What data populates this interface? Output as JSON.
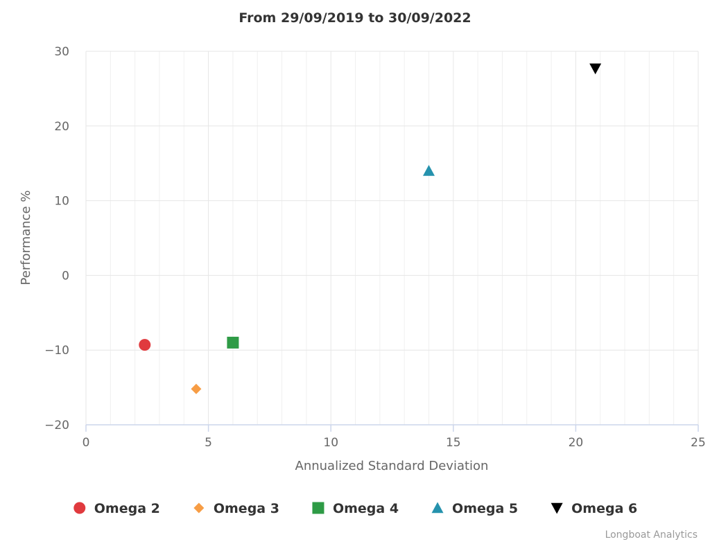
{
  "chart_data": {
    "type": "scatter",
    "title": "From 29/09/2019 to 30/09/2022",
    "xlabel": "Annualized Standard Deviation",
    "ylabel": "Performance %",
    "xlim": [
      0,
      25
    ],
    "ylim": [
      -20,
      30
    ],
    "xticks": [
      0,
      5,
      10,
      15,
      20,
      25
    ],
    "yticks": [
      -20,
      -10,
      0,
      10,
      20,
      30
    ],
    "xtick_labels": [
      "0",
      "5",
      "10",
      "15",
      "20",
      "25"
    ],
    "ytick_labels": [
      "−20",
      "−10",
      "0",
      "10",
      "20",
      "30"
    ],
    "x_minor_step": 1,
    "grid": true,
    "legend_position": "bottom-center",
    "series": [
      {
        "name": "Omega 2",
        "symbol": "circle",
        "color": "#e03a3e",
        "x": 2.4,
        "y": -9.3
      },
      {
        "name": "Omega 3",
        "symbol": "diamond",
        "color": "#f79d45",
        "x": 4.5,
        "y": -15.2
      },
      {
        "name": "Omega 4",
        "symbol": "square",
        "color": "#2e9b46",
        "x": 6.0,
        "y": -9.0
      },
      {
        "name": "Omega 5",
        "symbol": "triangle-up",
        "color": "#2592ad",
        "x": 14.0,
        "y": 14.0
      },
      {
        "name": "Omega 6",
        "symbol": "triangle-down",
        "color": "#000000",
        "x": 20.8,
        "y": 27.7
      }
    ]
  },
  "credits": "Longboat Analytics"
}
